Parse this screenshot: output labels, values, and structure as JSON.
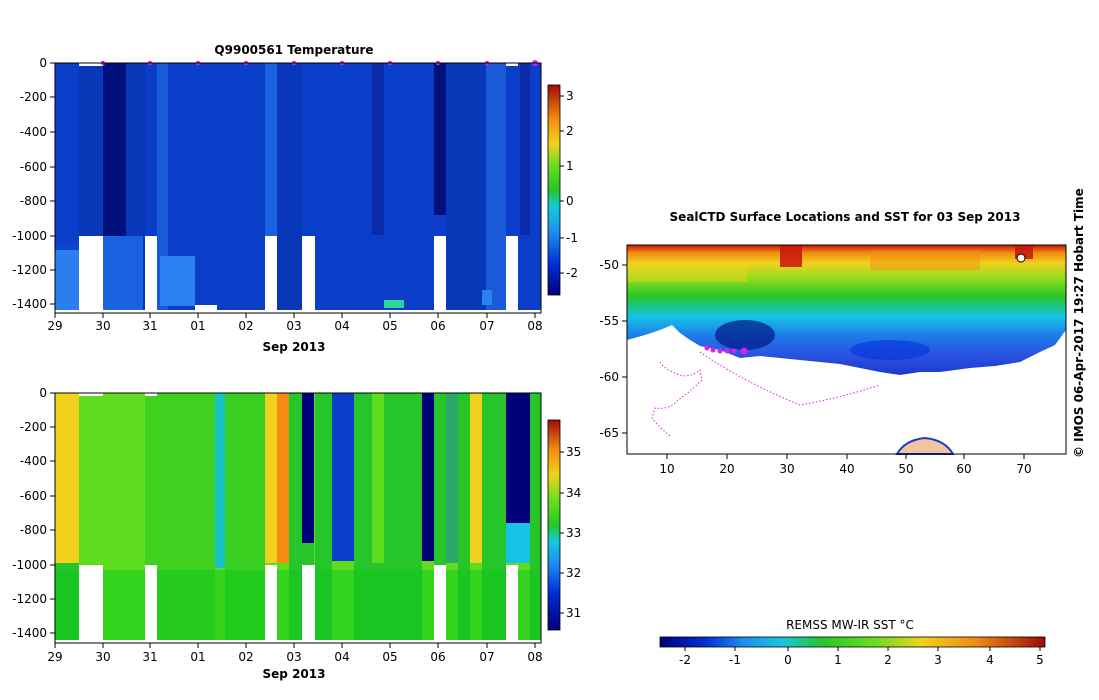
{
  "top_plot": {
    "title": "Q9900561  Temperature",
    "xlabel": "Sep 2013",
    "colorbar_ticks": [
      "3",
      "2",
      "1",
      "0",
      "-1",
      "-2"
    ]
  },
  "bottom_plot": {
    "xlabel": "Sep 2013",
    "colorbar_ticks": [
      "35",
      "34",
      "33",
      "32",
      "31"
    ]
  },
  "map": {
    "title": "SealCTD Surface Locations and SST for 03 Sep 2013",
    "colorbar_label": "REMSS MW-IR SST °C"
  },
  "credit": "© IMOS 06-Apr-2017 19:27 Hobart Time",
  "colors": {
    "deep_blue": "#00007a",
    "mid_blue": "#0a3dc8",
    "light_blue": "#1f6ee6",
    "cyan": "#16c3e6",
    "green": "#26c62a",
    "lime": "#5edd1e",
    "yellow": "#f0d21e",
    "orange": "#f28c12",
    "red": "#c8140a",
    "magenta": "#e020e0"
  },
  "chart_data": [
    {
      "type": "heatmap",
      "title": "Q9900561  Temperature",
      "xlabel": "Sep 2013",
      "ylabel": "",
      "x_ticks": [
        "29",
        "30",
        "31",
        "01",
        "02",
        "03",
        "04",
        "05",
        "06",
        "07",
        "08"
      ],
      "y_ticks": [
        0,
        -200,
        -400,
        -600,
        -800,
        -1000,
        -1200,
        -1400
      ],
      "ylim": [
        -1450,
        0
      ],
      "colorbar": {
        "range": [
          -2.5,
          3.4
        ],
        "ticks": [
          3,
          2,
          1,
          0,
          -1,
          -2
        ]
      },
      "dominant_values": "mostly -1.5 to -2.4 (blue) throughout the column",
      "surface_profile_markers": [
        "30",
        "31",
        "01",
        "02",
        "03",
        "04",
        "05",
        "06",
        "07",
        "08"
      ]
    },
    {
      "type": "heatmap",
      "title": "",
      "xlabel": "Sep 2013",
      "ylabel": "",
      "x_ticks": [
        "29",
        "30",
        "31",
        "01",
        "02",
        "03",
        "04",
        "05",
        "06",
        "07",
        "08"
      ],
      "y_ticks": [
        0,
        -200,
        -400,
        -600,
        -800,
        -1000,
        -1200,
        -1400
      ],
      "ylim": [
        -1450,
        0
      ],
      "colorbar": {
        "range": [
          30.5,
          35.8
        ],
        "ticks": [
          35,
          34,
          33,
          32,
          31
        ]
      },
      "dominant_values": "mostly 33–34 (green), low values ~30.5 near 03–04 and 06, 08"
    },
    {
      "type": "heatmap",
      "title": "SealCTD Surface Locations and SST for 03 Sep 2013",
      "x_ticks": [
        10,
        20,
        30,
        40,
        50,
        60,
        70
      ],
      "y_ticks": [
        -50,
        -55,
        -60,
        -65
      ],
      "xlim": [
        4,
        77
      ],
      "ylim": [
        -67,
        -48
      ],
      "colorbar_label": "REMSS MW-IR SST °C",
      "colorbar_range": [
        -2.5,
        5.2
      ],
      "colorbar_ticks": [
        -2,
        -1,
        0,
        1,
        2,
        3,
        4,
        5
      ]
    }
  ]
}
